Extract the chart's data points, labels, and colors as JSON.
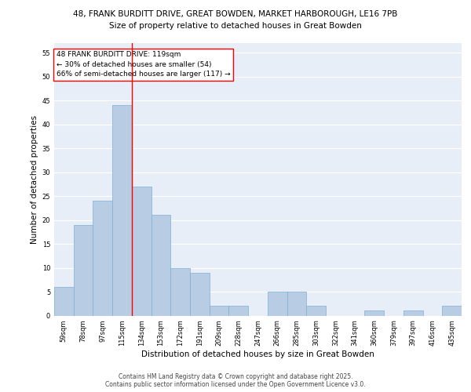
{
  "title_line1": "48, FRANK BURDITT DRIVE, GREAT BOWDEN, MARKET HARBOROUGH, LE16 7PB",
  "title_line2": "Size of property relative to detached houses in Great Bowden",
  "xlabel": "Distribution of detached houses by size in Great Bowden",
  "ylabel": "Number of detached properties",
  "categories": [
    "59sqm",
    "78sqm",
    "97sqm",
    "115sqm",
    "134sqm",
    "153sqm",
    "172sqm",
    "191sqm",
    "209sqm",
    "228sqm",
    "247sqm",
    "266sqm",
    "285sqm",
    "303sqm",
    "322sqm",
    "341sqm",
    "360sqm",
    "379sqm",
    "397sqm",
    "416sqm",
    "435sqm"
  ],
  "values": [
    6,
    19,
    24,
    44,
    27,
    21,
    10,
    9,
    2,
    2,
    0,
    5,
    5,
    2,
    0,
    0,
    1,
    0,
    1,
    0,
    2
  ],
  "bar_color": "#b8cce4",
  "bar_edge_color": "#7bafd4",
  "background_color": "#e8eef7",
  "grid_color": "#ffffff",
  "vline_x": 3.5,
  "vline_color": "red",
  "annotation_text": "48 FRANK BURDITT DRIVE: 119sqm\n← 30% of detached houses are smaller (54)\n66% of semi-detached houses are larger (117) →",
  "annotation_box_color": "white",
  "annotation_box_edge": "red",
  "ylim": [
    0,
    57
  ],
  "yticks": [
    0,
    5,
    10,
    15,
    20,
    25,
    30,
    35,
    40,
    45,
    50,
    55
  ],
  "footer": "Contains HM Land Registry data © Crown copyright and database right 2025.\nContains public sector information licensed under the Open Government Licence v3.0.",
  "title1_fontsize": 7.5,
  "title2_fontsize": 7.5,
  "tick_fontsize": 6.0,
  "ylabel_fontsize": 7.5,
  "xlabel_fontsize": 7.5,
  "annotation_fontsize": 6.5,
  "footer_fontsize": 5.5
}
